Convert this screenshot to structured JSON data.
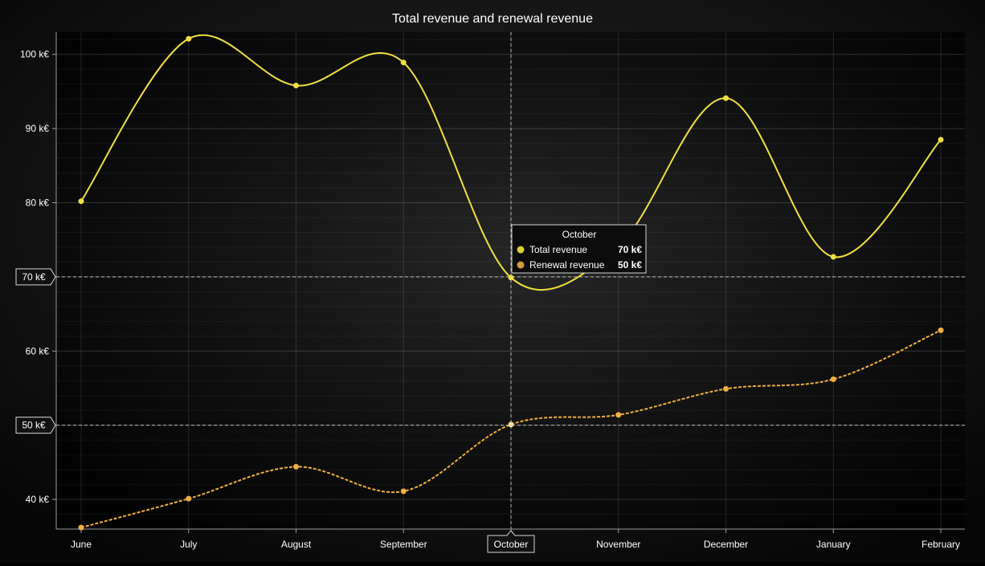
{
  "chart_data": {
    "type": "line",
    "title": "Total revenue and renewal revenue",
    "categories": [
      "June",
      "July",
      "August",
      "September",
      "October",
      "November",
      "December",
      "January",
      "February"
    ],
    "series": [
      {
        "name": "Total revenue",
        "values": [
          80.2,
          102.1,
          95.8,
          98.9,
          69.9,
          74.2,
          94.1,
          72.7,
          88.5
        ],
        "line": "solid"
      },
      {
        "name": "Renewal revenue",
        "values": [
          36.2,
          40.1,
          44.4,
          41.1,
          50.1,
          51.4,
          54.9,
          56.2,
          62.8
        ],
        "line": "dashed"
      }
    ],
    "ylim": [
      36,
      103
    ],
    "y_ticks": [
      40,
      60,
      80,
      90,
      100
    ],
    "y_tick_labels": [
      "40 k€",
      "60 k€",
      "80 k€",
      "90 k€",
      "100 k€"
    ],
    "y_markers": [
      {
        "value": 70,
        "label": "70 k€"
      },
      {
        "value": 50,
        "label": "50 k€"
      }
    ],
    "grid": true,
    "crosshair": {
      "category": "October"
    },
    "tooltip": {
      "title": "October",
      "rows": [
        {
          "series": "Total revenue",
          "value": "70 k€"
        },
        {
          "series": "Renewal revenue",
          "value": "50 k€"
        }
      ]
    }
  },
  "colors": {
    "total_revenue": "#f0e040",
    "renewal_revenue": "#f0b040",
    "tooltip_total_dot": "#d8cf3a",
    "tooltip_renewal_dot": "#d09a3c",
    "text": "#ffffff",
    "grid": "#3a3a3a",
    "axis": "#8a8a8a",
    "crosshair": "#bbbbbb"
  }
}
